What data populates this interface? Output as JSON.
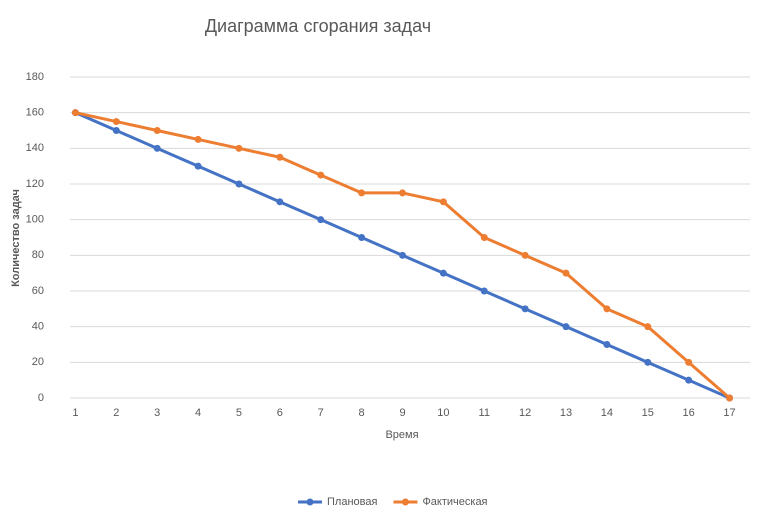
{
  "chart_data": {
    "type": "line",
    "title": "Диаграмма сгорания задач",
    "x_label": "Время",
    "y_label": "Количество задач",
    "categories": [
      "1",
      "2",
      "3",
      "4",
      "5",
      "6",
      "7",
      "8",
      "9",
      "10",
      "11",
      "12",
      "13",
      "14",
      "15",
      "16",
      "17"
    ],
    "series": [
      {
        "name": "Плановая",
        "color": "#4472c4",
        "values": [
          160,
          150,
          140,
          130,
          120,
          110,
          100,
          90,
          80,
          70,
          60,
          50,
          40,
          30,
          20,
          10,
          0
        ]
      },
      {
        "name": "Фактическая",
        "color": "#ed7d31",
        "values": [
          160,
          155,
          150,
          145,
          140,
          135,
          125,
          115,
          115,
          110,
          90,
          80,
          70,
          50,
          40,
          20,
          0
        ]
      }
    ],
    "ylim": [
      0,
      180
    ],
    "yticks": [
      0,
      20,
      40,
      60,
      80,
      100,
      120,
      140,
      160,
      180
    ],
    "grid": true,
    "legend": "bottom"
  }
}
